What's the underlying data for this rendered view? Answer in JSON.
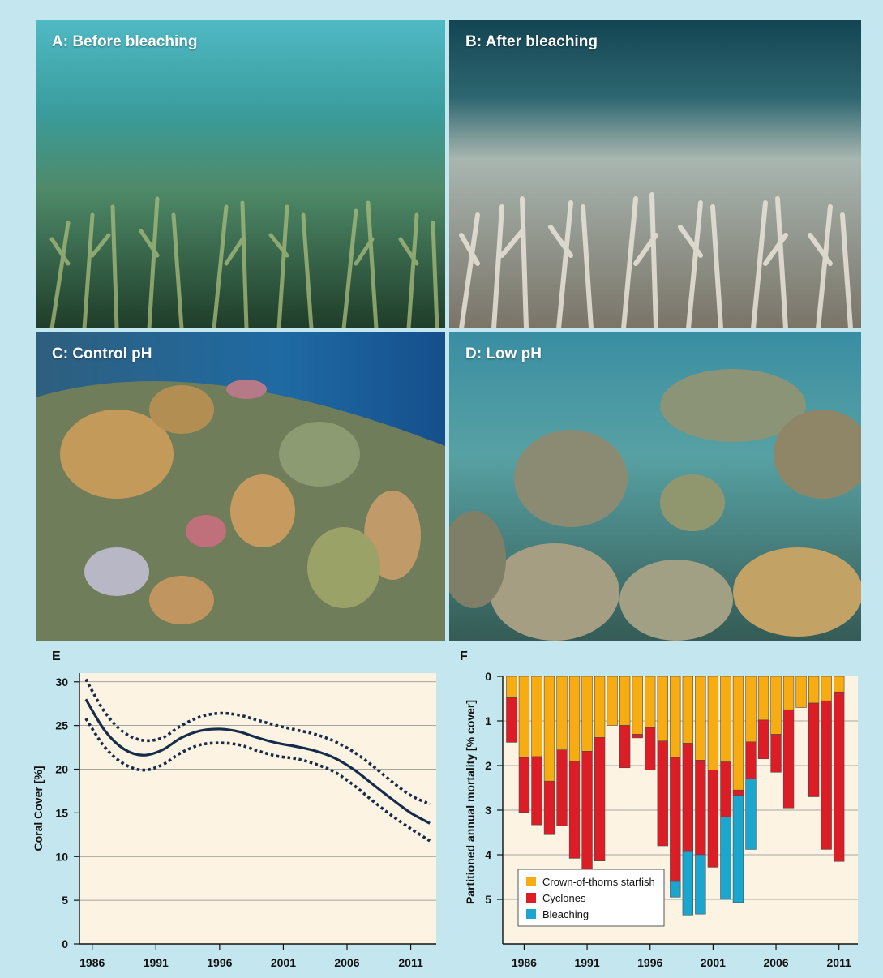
{
  "colors": {
    "background": "#c4e6ef",
    "plot_background": "#fdf3e3",
    "line": "#152c4a",
    "crown_of_thorns": "#f7ac12",
    "cyclones": "#dd1d26",
    "bleaching": "#1ba6cf"
  },
  "photos": [
    {
      "label": "A: Before bleaching",
      "icon": "coral-photo-healthy"
    },
    {
      "label": "B: After bleaching",
      "icon": "coral-photo-bleached"
    },
    {
      "label": "C: Control pH",
      "icon": "coral-photo-control-ph"
    },
    {
      "label": "D: Low pH",
      "icon": "coral-photo-low-ph"
    }
  ],
  "chart_data": [
    {
      "panel": "E",
      "type": "line",
      "xlabel": "",
      "ylabel": "Coral Cover [%]",
      "xlim": [
        1985,
        2013
      ],
      "ylim": [
        0,
        31
      ],
      "x_ticks": [
        1986,
        1991,
        1996,
        2001,
        2006,
        2011
      ],
      "y_ticks": [
        0,
        5,
        10,
        15,
        20,
        25,
        30
      ],
      "grid": "horizontal",
      "legend": "none",
      "series": [
        {
          "style": "solid",
          "x": [
            1985.5,
            1987,
            1988.5,
            1990,
            1991.5,
            1993,
            1994.5,
            1996,
            1997.5,
            1999,
            2000.5,
            2002,
            2003.5,
            2005,
            2006.5,
            2008,
            2009.5,
            2011,
            2012.5
          ],
          "y": [
            28.0,
            24.4,
            22.3,
            21.6,
            22.2,
            23.6,
            24.4,
            24.6,
            24.3,
            23.6,
            23.0,
            22.6,
            22.1,
            21.3,
            20.0,
            18.3,
            16.6,
            15.0,
            13.8
          ]
        },
        {
          "style": "dotted",
          "x": [
            1985.5,
            1987,
            1988.5,
            1990,
            1991.5,
            1993,
            1994.5,
            1996,
            1997.5,
            1999,
            2000.5,
            2002,
            2003.5,
            2005,
            2006.5,
            2008,
            2009.5,
            2011,
            2012.5
          ],
          "y": [
            30.3,
            26.5,
            24.2,
            23.3,
            23.6,
            25.0,
            26.0,
            26.4,
            26.2,
            25.6,
            25.0,
            24.5,
            24.0,
            23.2,
            22.0,
            20.4,
            18.6,
            17.0,
            16.0
          ]
        },
        {
          "style": "dotted",
          "x": [
            1985.5,
            1987,
            1988.5,
            1990,
            1991.5,
            1993,
            1994.5,
            1996,
            1997.5,
            1999,
            2000.5,
            2002,
            2003.5,
            2005,
            2006.5,
            2008,
            2009.5,
            2011,
            2012.5
          ],
          "y": [
            25.8,
            22.5,
            20.6,
            19.9,
            20.5,
            21.9,
            22.8,
            23.0,
            22.8,
            22.1,
            21.5,
            21.2,
            20.6,
            19.7,
            18.2,
            16.4,
            14.7,
            13.2,
            11.8
          ]
        }
      ]
    },
    {
      "panel": "F",
      "type": "bar",
      "stacked": true,
      "ylabel": "Partitioned annual mortality [% cover]",
      "y_inverted": true,
      "ylim": [
        0,
        6
      ],
      "x_ticks": [
        1986,
        1991,
        1996,
        2001,
        2006,
        2011
      ],
      "y_ticks": [
        0,
        1,
        2,
        3,
        4,
        5
      ],
      "grid": "horizontal",
      "legend": "bottom-left",
      "categories": [
        1985,
        1986,
        1987,
        1988,
        1989,
        1990,
        1991,
        1992,
        1993,
        1994,
        1995,
        1996,
        1997,
        1998,
        1999,
        2000,
        2001,
        2002,
        2003,
        2004,
        2005,
        2006,
        2007,
        2008,
        2009,
        2010,
        2011
      ],
      "series": [
        {
          "name": "Crown-of-thorns starfish",
          "color": "#f7ac12",
          "values": [
            0.48,
            1.82,
            1.8,
            2.35,
            1.65,
            1.91,
            1.68,
            1.37,
            1.1,
            1.1,
            1.3,
            1.15,
            1.45,
            1.82,
            1.5,
            1.88,
            2.1,
            1.92,
            2.55,
            1.47,
            0.98,
            1.3,
            0.75,
            0.7,
            0.6,
            0.55,
            0.35
          ]
        },
        {
          "name": "Cyclones",
          "color": "#dd1d26",
          "values": [
            1.0,
            1.23,
            1.53,
            1.2,
            1.7,
            2.17,
            2.7,
            2.77,
            0.0,
            0.95,
            0.08,
            0.95,
            2.35,
            2.78,
            2.43,
            2.12,
            2.18,
            1.23,
            0.12,
            0.83,
            0.87,
            0.85,
            2.2,
            0.0,
            2.1,
            3.33,
            3.8
          ]
        },
        {
          "name": "Bleaching",
          "color": "#1ba6cf",
          "values": [
            0,
            0,
            0,
            0,
            0,
            0,
            0,
            0,
            0,
            0,
            0,
            0,
            0,
            0.35,
            1.42,
            1.33,
            0,
            1.85,
            2.4,
            1.58,
            0,
            0,
            0,
            0,
            0,
            0,
            0
          ]
        }
      ]
    }
  ]
}
